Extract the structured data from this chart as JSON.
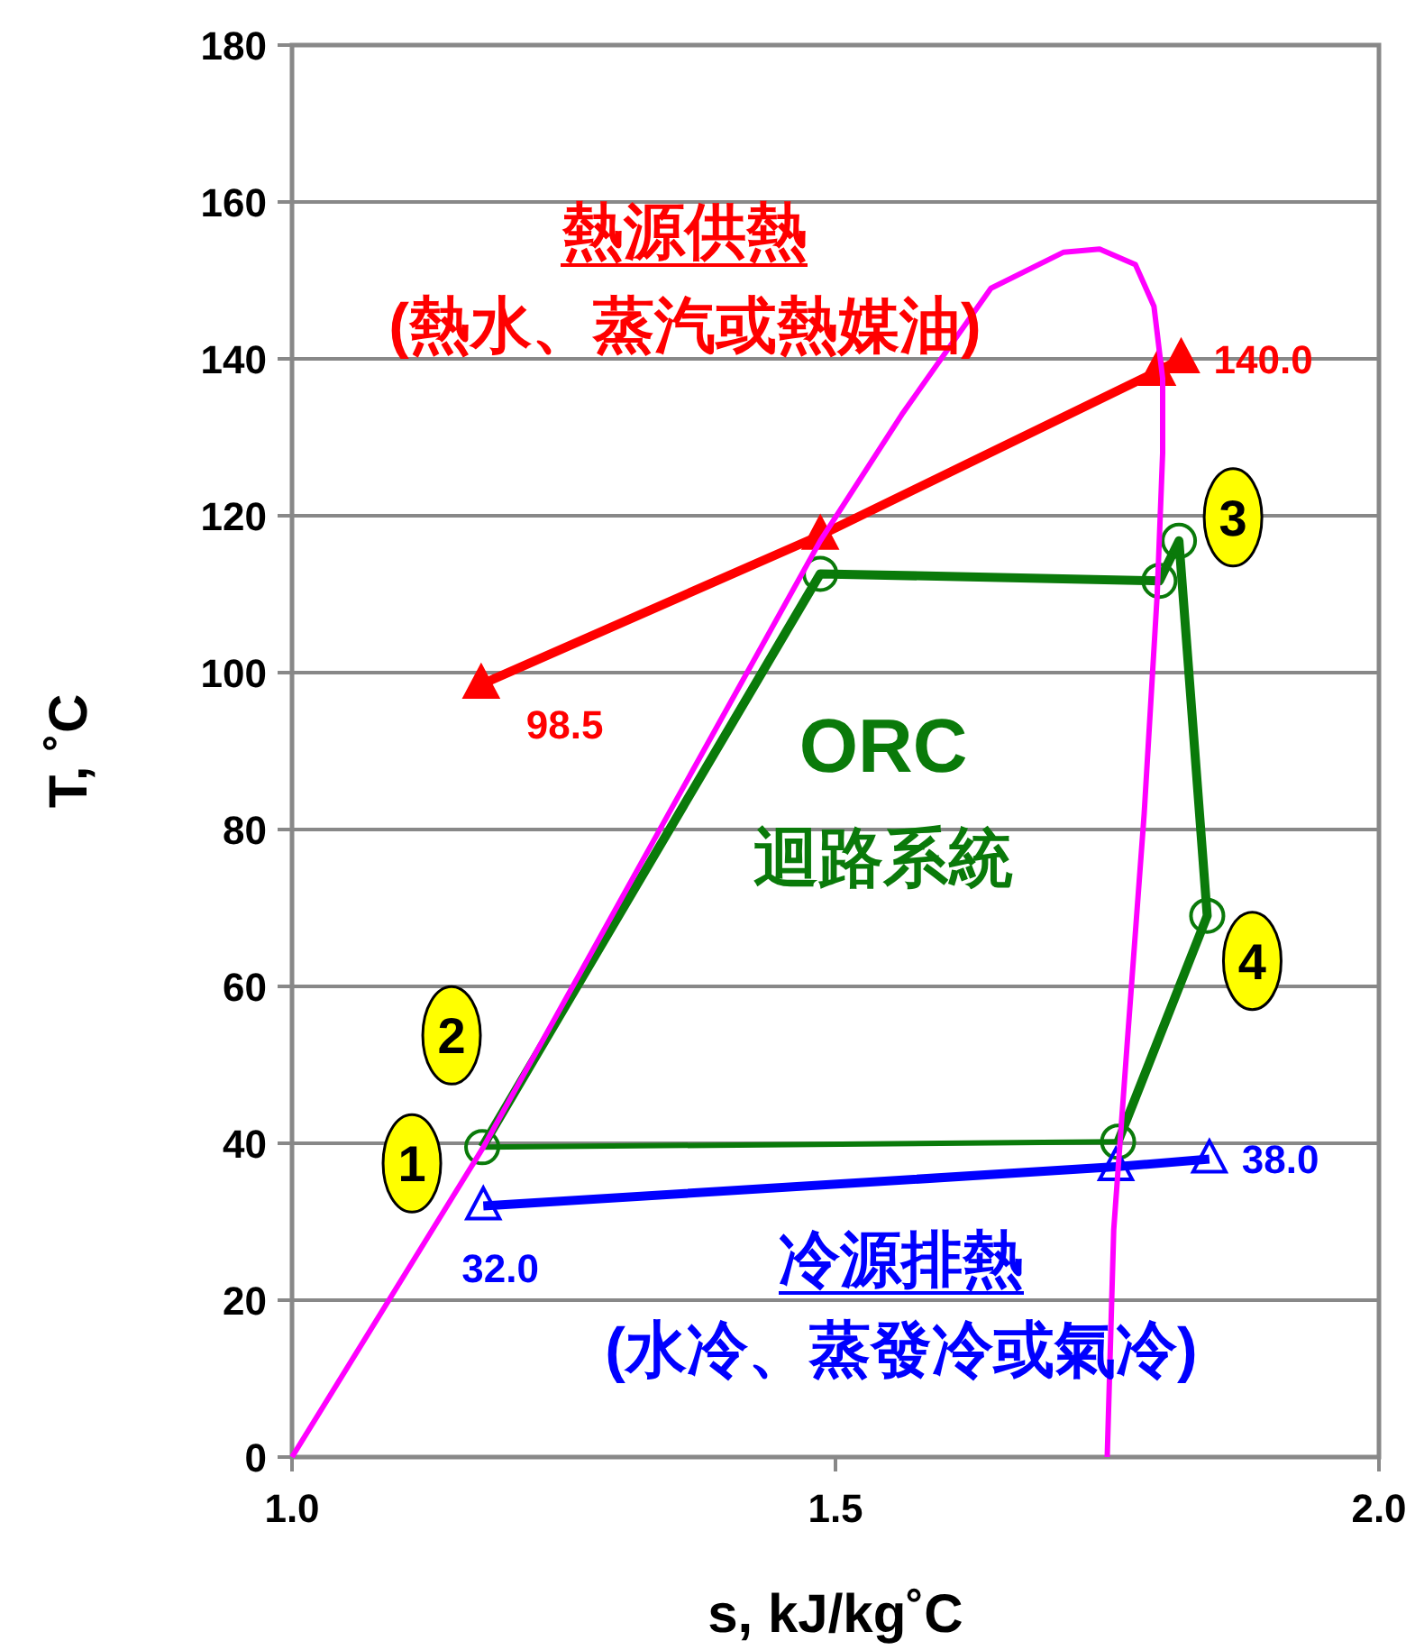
{
  "chart_data": {
    "type": "line",
    "xlabel": "s, kJ/kg˚C",
    "ylabel": "T, ˚C",
    "xlim": [
      1,
      2
    ],
    "ylim": [
      0,
      180
    ],
    "xticks": [
      {
        "value": 1,
        "label": "1.0"
      },
      {
        "value": 1.5,
        "label": "1.5"
      },
      {
        "value": 2,
        "label": "2.0"
      }
    ],
    "yticks": [
      0,
      20,
      40,
      60,
      80,
      100,
      120,
      140,
      160,
      180
    ],
    "grid": "y",
    "series": [
      {
        "color": "#ff0000",
        "marker": "triangle",
        "x": [
          1.174,
          1.486,
          1.796,
          1.818
        ],
        "values": [
          98.5,
          117.5,
          138.4,
          140.0
        ],
        "value_labels": [
          "98.5",
          null,
          null,
          "140.0"
        ]
      },
      {
        "color": "#0a7a0a",
        "marker": "circle",
        "x": [
          1.175,
          1.486,
          1.798,
          1.816,
          1.842,
          1.76
        ],
        "values": [
          39.5,
          112.6,
          111.7,
          116.8,
          69,
          40.2
        ]
      },
      {
        "color": "#0a7a0a",
        "marker": "none",
        "x": [
          1.76,
          1.175
        ],
        "values": [
          40.2,
          39.5
        ]
      },
      {
        "color": "#0000ff",
        "marker": "triangle-open",
        "x": [
          1.176,
          1.758,
          1.844
        ],
        "values": [
          32.0,
          37.0,
          38.0
        ],
        "value_labels": [
          "32.0",
          null,
          "38.0"
        ]
      },
      {
        "color": "#ff00ff",
        "marker": "none",
        "x": [
          1.0,
          1.176,
          1.486,
          1.561,
          1.643,
          1.71,
          1.743,
          1.776,
          1.793,
          1.801,
          1.801,
          1.796,
          1.784,
          1.768,
          1.756,
          1.75
        ],
        "values": [
          0,
          39.5,
          116.8,
          132.9,
          149,
          153.6,
          154,
          152,
          146.7,
          137.5,
          128,
          110,
          82,
          52,
          29,
          0
        ]
      }
    ],
    "annotations": [
      "熱源供熱",
      "(熱水、蒸汽或熱媒油)",
      "ORC",
      "迴路系統",
      "冷源排熱",
      "(水冷、蒸發冷或氣冷)",
      {
        "text": "1",
        "x": 1.175,
        "y": 39.5
      },
      {
        "text": "2",
        "x": 1.175,
        "y": 39.5
      },
      {
        "text": "3",
        "x": 1.816,
        "y": 116.8
      },
      {
        "text": "4",
        "x": 1.842,
        "y": 69
      }
    ]
  }
}
